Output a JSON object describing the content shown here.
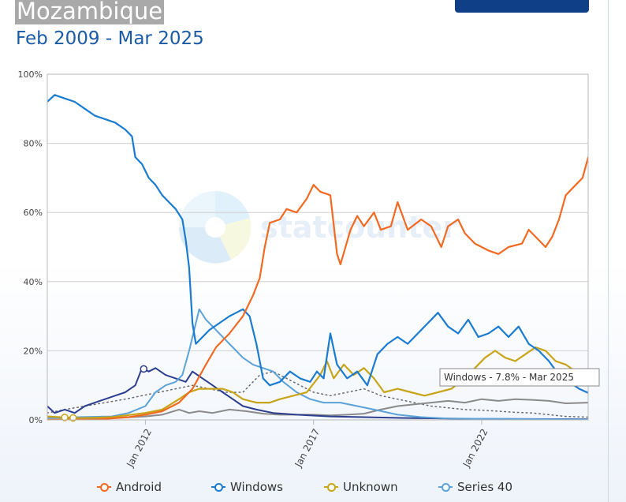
{
  "header": {
    "title": "Mozambique",
    "subtitle": "Feb 2009 - Mar 2025"
  },
  "tooltip": {
    "text": "Windows - 7.8% - Mar 2025"
  },
  "watermark": {
    "text": "statcounter"
  },
  "chart_data": {
    "type": "line",
    "title": "Mozambique",
    "subtitle": "Feb 2009 - Mar 2025",
    "y_unit": "%",
    "ylim": [
      0,
      100
    ],
    "yticks": [
      0,
      20,
      40,
      60,
      80,
      100
    ],
    "ytick_labels": [
      "0%",
      "20%",
      "40%",
      "60%",
      "80%",
      "100%"
    ],
    "xlim": [
      2009.083,
      2025.167
    ],
    "xticks": [
      2012,
      2017,
      2022
    ],
    "xtick_labels": [
      "Jan 2012",
      "Jan 2017",
      "Jan 2022"
    ],
    "grid": true,
    "legend_position": "bottom",
    "series": [
      {
        "name": "Android",
        "color": "#f26a21",
        "width": 2.2,
        "points": [
          [
            2009.08,
            0
          ],
          [
            2010.5,
            0.1
          ],
          [
            2011.5,
            0.8
          ],
          [
            2012,
            1.5
          ],
          [
            2012.5,
            2.5
          ],
          [
            2013,
            5
          ],
          [
            2013.4,
            9
          ],
          [
            2013.8,
            16
          ],
          [
            2014.1,
            21
          ],
          [
            2014.5,
            25
          ],
          [
            2014.9,
            30
          ],
          [
            2015.2,
            36
          ],
          [
            2015.4,
            41
          ],
          [
            2015.55,
            50
          ],
          [
            2015.7,
            57
          ],
          [
            2016,
            58
          ],
          [
            2016.2,
            61
          ],
          [
            2016.5,
            60
          ],
          [
            2016.8,
            64
          ],
          [
            2017,
            68
          ],
          [
            2017.2,
            66
          ],
          [
            2017.5,
            65
          ],
          [
            2017.7,
            48
          ],
          [
            2017.8,
            45
          ],
          [
            2018.1,
            55
          ],
          [
            2018.3,
            59
          ],
          [
            2018.5,
            56
          ],
          [
            2018.8,
            60
          ],
          [
            2019,
            55
          ],
          [
            2019.3,
            56
          ],
          [
            2019.5,
            63
          ],
          [
            2019.8,
            55
          ],
          [
            2020.2,
            58
          ],
          [
            2020.5,
            56
          ],
          [
            2020.8,
            50
          ],
          [
            2021,
            56
          ],
          [
            2021.3,
            58
          ],
          [
            2021.5,
            54
          ],
          [
            2021.8,
            51
          ],
          [
            2022.2,
            49
          ],
          [
            2022.5,
            48
          ],
          [
            2022.8,
            50
          ],
          [
            2023.2,
            51
          ],
          [
            2023.4,
            55
          ],
          [
            2023.6,
            53
          ],
          [
            2023.9,
            50
          ],
          [
            2024.1,
            53
          ],
          [
            2024.3,
            58
          ],
          [
            2024.5,
            65
          ],
          [
            2024.8,
            68
          ],
          [
            2025,
            70
          ],
          [
            2025.17,
            76
          ]
        ]
      },
      {
        "name": "Windows",
        "color": "#1a7bd0",
        "width": 2.2,
        "points": [
          [
            2009.08,
            92
          ],
          [
            2009.3,
            94
          ],
          [
            2009.6,
            93
          ],
          [
            2009.9,
            92
          ],
          [
            2010.2,
            90
          ],
          [
            2010.5,
            88
          ],
          [
            2010.8,
            87
          ],
          [
            2011.1,
            86
          ],
          [
            2011.4,
            84
          ],
          [
            2011.6,
            82
          ],
          [
            2011.7,
            76
          ],
          [
            2011.9,
            74
          ],
          [
            2012.1,
            70
          ],
          [
            2012.3,
            68
          ],
          [
            2012.5,
            65
          ],
          [
            2012.7,
            63
          ],
          [
            2012.9,
            61
          ],
          [
            2013.1,
            58
          ],
          [
            2013.2,
            52
          ],
          [
            2013.3,
            44
          ],
          [
            2013.4,
            28
          ],
          [
            2013.5,
            22
          ],
          [
            2013.7,
            24
          ],
          [
            2013.9,
            26
          ],
          [
            2014.2,
            28
          ],
          [
            2014.5,
            30
          ],
          [
            2014.7,
            31
          ],
          [
            2014.9,
            32
          ],
          [
            2015.1,
            30
          ],
          [
            2015.3,
            22
          ],
          [
            2015.5,
            12
          ],
          [
            2015.7,
            10
          ],
          [
            2016,
            11
          ],
          [
            2016.3,
            14
          ],
          [
            2016.6,
            12
          ],
          [
            2016.9,
            11
          ],
          [
            2017.1,
            14
          ],
          [
            2017.3,
            12
          ],
          [
            2017.5,
            25
          ],
          [
            2017.7,
            16
          ],
          [
            2018,
            12
          ],
          [
            2018.3,
            14
          ],
          [
            2018.6,
            10
          ],
          [
            2018.9,
            19
          ],
          [
            2019.2,
            22
          ],
          [
            2019.5,
            24
          ],
          [
            2019.8,
            22
          ],
          [
            2020.1,
            25
          ],
          [
            2020.4,
            28
          ],
          [
            2020.7,
            31
          ],
          [
            2021,
            27
          ],
          [
            2021.3,
            25
          ],
          [
            2021.6,
            29
          ],
          [
            2021.9,
            24
          ],
          [
            2022.2,
            25
          ],
          [
            2022.5,
            27
          ],
          [
            2022.8,
            24
          ],
          [
            2023.1,
            27
          ],
          [
            2023.4,
            22
          ],
          [
            2023.7,
            20
          ],
          [
            2024,
            17
          ],
          [
            2024.3,
            13
          ],
          [
            2024.6,
            11
          ],
          [
            2024.9,
            9
          ],
          [
            2025.17,
            7.8
          ]
        ]
      },
      {
        "name": "Unknown",
        "color": "#c8a418",
        "width": 2.2,
        "points": [
          [
            2009.08,
            1
          ],
          [
            2010,
            0.5
          ],
          [
            2011,
            0.8
          ],
          [
            2012,
            2
          ],
          [
            2012.5,
            3
          ],
          [
            2013,
            6
          ],
          [
            2013.3,
            8
          ],
          [
            2013.6,
            9
          ],
          [
            2013.9,
            9
          ],
          [
            2014.3,
            9
          ],
          [
            2014.6,
            8
          ],
          [
            2014.9,
            6
          ],
          [
            2015.3,
            5
          ],
          [
            2015.7,
            5
          ],
          [
            2016,
            6
          ],
          [
            2016.4,
            7
          ],
          [
            2016.8,
            8
          ],
          [
            2017.2,
            13
          ],
          [
            2017.4,
            17
          ],
          [
            2017.6,
            12
          ],
          [
            2017.9,
            16
          ],
          [
            2018.2,
            13
          ],
          [
            2018.5,
            15
          ],
          [
            2018.8,
            12
          ],
          [
            2019.1,
            8
          ],
          [
            2019.5,
            9
          ],
          [
            2019.9,
            8
          ],
          [
            2020.3,
            7
          ],
          [
            2020.7,
            8
          ],
          [
            2021.1,
            9
          ],
          [
            2021.5,
            12
          ],
          [
            2021.8,
            15
          ],
          [
            2022.1,
            18
          ],
          [
            2022.4,
            20
          ],
          [
            2022.7,
            18
          ],
          [
            2023,
            17
          ],
          [
            2023.3,
            19
          ],
          [
            2023.6,
            21
          ],
          [
            2023.9,
            20
          ],
          [
            2024.2,
            17
          ],
          [
            2024.5,
            16
          ],
          [
            2024.8,
            14
          ],
          [
            2025.17,
            13
          ]
        ]
      },
      {
        "name": "Series 40",
        "color": "#5aa2d8",
        "width": 2.0,
        "points": [
          [
            2009.08,
            0.5
          ],
          [
            2010,
            0.8
          ],
          [
            2011,
            1
          ],
          [
            2011.5,
            2
          ],
          [
            2012,
            4
          ],
          [
            2012.3,
            8
          ],
          [
            2012.6,
            10
          ],
          [
            2012.9,
            11
          ],
          [
            2013.1,
            13
          ],
          [
            2013.3,
            20
          ],
          [
            2013.5,
            28
          ],
          [
            2013.6,
            32
          ],
          [
            2013.8,
            29
          ],
          [
            2014,
            27
          ],
          [
            2014.3,
            24
          ],
          [
            2014.6,
            21
          ],
          [
            2014.9,
            18
          ],
          [
            2015.2,
            16
          ],
          [
            2015.5,
            15
          ],
          [
            2015.8,
            14
          ],
          [
            2016.1,
            11
          ],
          [
            2016.5,
            8
          ],
          [
            2016.9,
            6
          ],
          [
            2017.3,
            5
          ],
          [
            2017.8,
            5
          ],
          [
            2018.3,
            4
          ],
          [
            2018.8,
            3
          ],
          [
            2019.5,
            1.5
          ],
          [
            2020.2,
            0.8
          ],
          [
            2021,
            0.4
          ],
          [
            2025.17,
            0.1
          ]
        ]
      },
      {
        "name": "Other Dark Blue",
        "color": "#2c3e8f",
        "width": 2.0,
        "points": [
          [
            2009.08,
            4
          ],
          [
            2009.3,
            2
          ],
          [
            2009.6,
            3
          ],
          [
            2009.9,
            2
          ],
          [
            2010.2,
            4
          ],
          [
            2010.5,
            5
          ],
          [
            2010.8,
            6
          ],
          [
            2011.1,
            7
          ],
          [
            2011.4,
            8
          ],
          [
            2011.7,
            10
          ],
          [
            2011.9,
            15
          ],
          [
            2012.1,
            14
          ],
          [
            2012.3,
            15
          ],
          [
            2012.6,
            13
          ],
          [
            2012.9,
            12
          ],
          [
            2013.2,
            11
          ],
          [
            2013.4,
            14
          ],
          [
            2013.7,
            12
          ],
          [
            2014,
            10
          ],
          [
            2014.3,
            8
          ],
          [
            2014.6,
            6
          ],
          [
            2014.9,
            4
          ],
          [
            2015.3,
            3
          ],
          [
            2015.8,
            2
          ],
          [
            2016.5,
            1.5
          ],
          [
            2017.5,
            1
          ],
          [
            2018.5,
            0.8
          ],
          [
            2020,
            0.5
          ],
          [
            2022,
            0.3
          ],
          [
            2025.17,
            0.2
          ]
        ]
      },
      {
        "name": "Other Gray",
        "color": "#8a8a8a",
        "width": 2.0,
        "points": [
          [
            2009.08,
            0
          ],
          [
            2010,
            0.3
          ],
          [
            2011,
            0.5
          ],
          [
            2012,
            1
          ],
          [
            2012.5,
            1.5
          ],
          [
            2013,
            3
          ],
          [
            2013.3,
            2
          ],
          [
            2013.6,
            2.5
          ],
          [
            2014,
            2
          ],
          [
            2014.5,
            3
          ],
          [
            2015,
            2.5
          ],
          [
            2015.5,
            1.8
          ],
          [
            2016,
            1.5
          ],
          [
            2016.5,
            1.5
          ],
          [
            2017,
            1.5
          ],
          [
            2017.5,
            1.3
          ],
          [
            2018,
            1.5
          ],
          [
            2018.5,
            1.8
          ],
          [
            2019,
            3
          ],
          [
            2019.5,
            4
          ],
          [
            2020,
            4.5
          ],
          [
            2020.5,
            5
          ],
          [
            2021,
            5.5
          ],
          [
            2021.5,
            5
          ],
          [
            2022,
            6
          ],
          [
            2022.5,
            5.5
          ],
          [
            2023,
            6
          ],
          [
            2023.5,
            5.8
          ],
          [
            2024,
            5.5
          ],
          [
            2024.5,
            4.8
          ],
          [
            2025.17,
            5
          ]
        ]
      },
      {
        "name": "Other Dotted",
        "color": "#666666",
        "width": 1.5,
        "dashed": true,
        "points": [
          [
            2009.08,
            2
          ],
          [
            2009.6,
            3
          ],
          [
            2010.2,
            4
          ],
          [
            2010.8,
            5
          ],
          [
            2011.4,
            6
          ],
          [
            2011.9,
            7
          ],
          [
            2012.4,
            8
          ],
          [
            2012.9,
            9
          ],
          [
            2013.4,
            10
          ],
          [
            2013.9,
            9
          ],
          [
            2014.4,
            8
          ],
          [
            2014.9,
            8
          ],
          [
            2015.4,
            13
          ],
          [
            2015.8,
            14
          ],
          [
            2016.2,
            12
          ],
          [
            2016.6,
            10
          ],
          [
            2017,
            8
          ],
          [
            2017.5,
            7
          ],
          [
            2018,
            8
          ],
          [
            2018.5,
            9
          ],
          [
            2019,
            7
          ],
          [
            2019.5,
            6
          ],
          [
            2020,
            5
          ],
          [
            2020.5,
            4
          ],
          [
            2021,
            3.5
          ],
          [
            2021.5,
            3
          ],
          [
            2022,
            2.8
          ],
          [
            2022.5,
            2.5
          ],
          [
            2023,
            2.2
          ],
          [
            2023.5,
            2
          ],
          [
            2024,
            1.5
          ],
          [
            2024.5,
            1
          ],
          [
            2025.17,
            0.8
          ]
        ]
      }
    ],
    "legend": [
      {
        "name": "Android",
        "color": "#f26a21"
      },
      {
        "name": "Windows",
        "color": "#1a7bd0"
      },
      {
        "name": "Unknown",
        "color": "#c8a418"
      },
      {
        "name": "Series 40",
        "color": "#5aa2d8"
      }
    ]
  }
}
